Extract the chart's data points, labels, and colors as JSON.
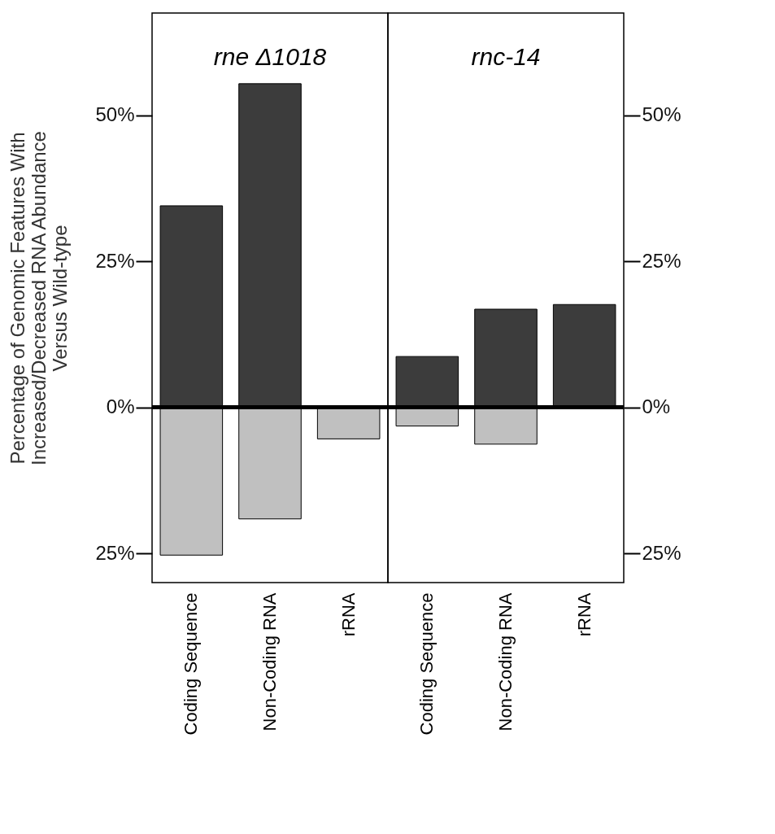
{
  "chart_data": [
    {
      "type": "bar",
      "title": "rne Δ1018",
      "ylabel": "Percentage of Genomic Features With\nIncreased/Decreased RNA Abundance\nVersus Wild-type",
      "categories": [
        "Coding Sequence",
        "Non-Coding RNA",
        "rRNA"
      ],
      "series": [
        {
          "color": "#3c3c3c",
          "values": [
            34.5,
            55.4,
            null
          ]
        },
        {
          "color": "#c0c0c0",
          "values": [
            -25.3,
            -19.1,
            -5.4
          ]
        }
      ],
      "ylim": [
        -30,
        67.5
      ],
      "yticks": [
        {
          "value": -25,
          "label": "25%"
        },
        {
          "value": 0,
          "label": "0%"
        },
        {
          "value": 25,
          "label": "25%"
        },
        {
          "value": 50,
          "label": "50%"
        }
      ],
      "ref_lines": [
        {
          "axis": "y",
          "value": 0,
          "label": null,
          "color": "#000000"
        }
      ],
      "grid": false,
      "stacked": true
    },
    {
      "type": "bar",
      "title": "rnc-14",
      "categories": [
        "Coding Sequence",
        "Non-Coding RNA",
        "rRNA"
      ],
      "series": [
        {
          "color": "#3c3c3c",
          "values": [
            8.7,
            16.8,
            17.6
          ]
        },
        {
          "color": "#c0c0c0",
          "values": [
            -3.2,
            -6.3,
            null
          ]
        }
      ],
      "ylim": [
        -30,
        67.5
      ],
      "yticks": [
        {
          "value": -25,
          "label": "25%"
        },
        {
          "value": 0,
          "label": "0%"
        },
        {
          "value": 25,
          "label": "25%"
        },
        {
          "value": 50,
          "label": "50%"
        }
      ],
      "ref_lines": [
        {
          "axis": "y",
          "value": 0,
          "label": null,
          "color": "#000000"
        }
      ],
      "grid": false,
      "stacked": true
    }
  ]
}
